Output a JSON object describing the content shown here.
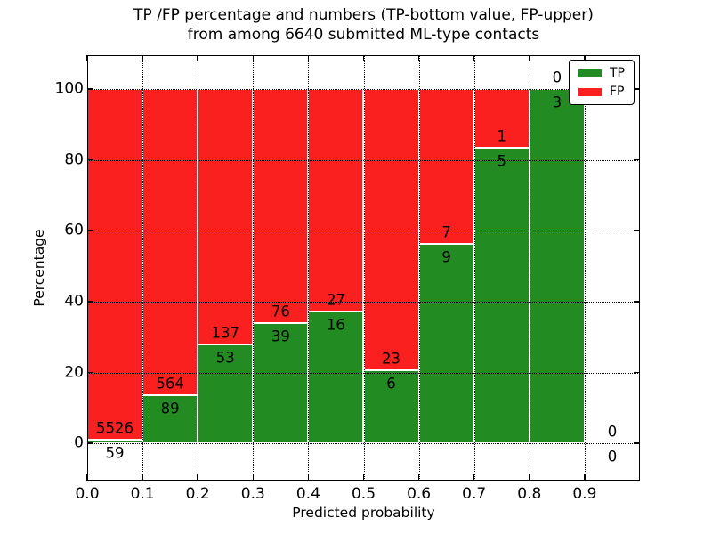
{
  "chart_data": {
    "type": "bar",
    "stacked": true,
    "title_lines": [
      "TP /FP percentage and numbers (TP-bottom value, FP-upper)",
      "from among 6640 submitted ML-type contacts"
    ],
    "title": "TP /FP percentage and numbers (TP-bottom value, FP-upper)\nfrom among 6640 submitted ML-type contacts",
    "xlabel": "Predicted probability",
    "ylabel": "Percentage",
    "xlim": [
      0.0,
      1.0
    ],
    "ylim": [
      -10.5,
      109.5
    ],
    "x_ticks": [
      0.0,
      0.1,
      0.2,
      0.3,
      0.4,
      0.5,
      0.6,
      0.7,
      0.8,
      0.9
    ],
    "x_tick_labels": [
      "0.0",
      "0.1",
      "0.2",
      "0.3",
      "0.4",
      "0.5",
      "0.6",
      "0.7",
      "0.8",
      "0.9"
    ],
    "y_ticks": [
      0,
      20,
      40,
      60,
      80,
      100
    ],
    "y_tick_labels": [
      "0",
      "20",
      "40",
      "60",
      "80",
      "100"
    ],
    "grid": "dotted",
    "colors": {
      "tp": "#228b22",
      "fp": "#fa2020",
      "bar_edge": "#ffffff"
    },
    "legend": {
      "location": "upper right",
      "entries": [
        {
          "label": "TP",
          "color": "#228b22"
        },
        {
          "label": "FP",
          "color": "#fa2020"
        }
      ]
    },
    "bins": [
      {
        "range": [
          0.0,
          0.1
        ],
        "tp": 59,
        "fp": 5526,
        "tp_pct": 1.06
      },
      {
        "range": [
          0.1,
          0.2
        ],
        "tp": 89,
        "fp": 564,
        "tp_pct": 13.63
      },
      {
        "range": [
          0.2,
          0.3
        ],
        "tp": 53,
        "fp": 137,
        "tp_pct": 27.89
      },
      {
        "range": [
          0.3,
          0.4
        ],
        "tp": 39,
        "fp": 76,
        "tp_pct": 33.91
      },
      {
        "range": [
          0.4,
          0.5
        ],
        "tp": 16,
        "fp": 27,
        "tp_pct": 37.21
      },
      {
        "range": [
          0.5,
          0.6
        ],
        "tp": 6,
        "fp": 23,
        "tp_pct": 20.69
      },
      {
        "range": [
          0.6,
          0.7
        ],
        "tp": 9,
        "fp": 7,
        "tp_pct": 56.25
      },
      {
        "range": [
          0.7,
          0.8
        ],
        "tp": 5,
        "fp": 1,
        "tp_pct": 83.33
      },
      {
        "range": [
          0.8,
          0.9
        ],
        "tp": 3,
        "fp": 0,
        "tp_pct": 100.0
      },
      {
        "range": [
          0.9,
          1.0
        ],
        "tp": 0,
        "fp": 0,
        "tp_pct": 0.0
      }
    ]
  }
}
